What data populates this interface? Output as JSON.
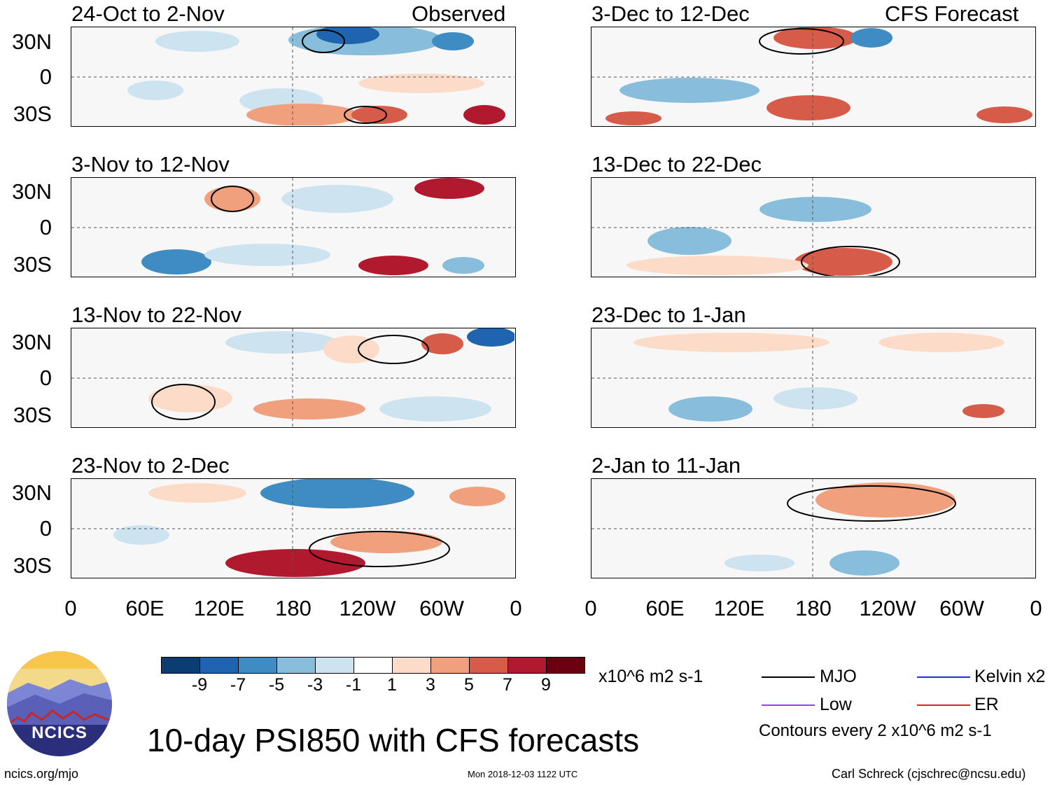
{
  "panels": {
    "left": [
      {
        "title": "24-Oct to 2-Nov",
        "tag": "Observed"
      },
      {
        "title": "3-Nov to 12-Nov",
        "tag": ""
      },
      {
        "title": "13-Nov to 22-Nov",
        "tag": ""
      },
      {
        "title": "23-Nov to 2-Dec",
        "tag": ""
      }
    ],
    "right": [
      {
        "title": "3-Dec to 12-Dec",
        "tag": "CFS Forecast"
      },
      {
        "title": "13-Dec to 22-Dec",
        "tag": ""
      },
      {
        "title": "23-Dec to 1-Jan",
        "tag": ""
      },
      {
        "title": "2-Jan to 11-Jan",
        "tag": ""
      }
    ]
  },
  "axes": {
    "lat_labels": [
      "30N",
      "0",
      "30S"
    ],
    "lon_labels": [
      "0",
      "60E",
      "120E",
      "180",
      "120W",
      "60W",
      "0"
    ]
  },
  "colorbar": {
    "colors": [
      "#0b3c72",
      "#1f64ae",
      "#3f8cc3",
      "#88bedc",
      "#cde3ef",
      "#ffffff",
      "#fcdcc9",
      "#f0a07c",
      "#d65b48",
      "#b0192e",
      "#6a0010"
    ],
    "labels": [
      "-9",
      "-7",
      "-5",
      "-3",
      "-1",
      "1",
      "3",
      "5",
      "7",
      "9"
    ],
    "units": "x10^6 m2 s-1"
  },
  "legend": {
    "items": [
      {
        "label": "MJO",
        "color": "#000000"
      },
      {
        "label": "Kelvin x2",
        "color": "#1f2ee0"
      },
      {
        "label": "Low",
        "color": "#9b3fe0"
      },
      {
        "label": "ER",
        "color": "#e02020"
      }
    ],
    "note": "Contours every 2 x10^6 m2 s-1"
  },
  "logo": {
    "text": "NCICS"
  },
  "footer": {
    "title": "10-day PSI850 with CFS forecasts",
    "url": "ncics.org/mjo",
    "timestamp": "Mon 2018-12-03 1122 UTC",
    "credit": "Carl Schreck (cjschrec@ncsu.edu)"
  }
}
